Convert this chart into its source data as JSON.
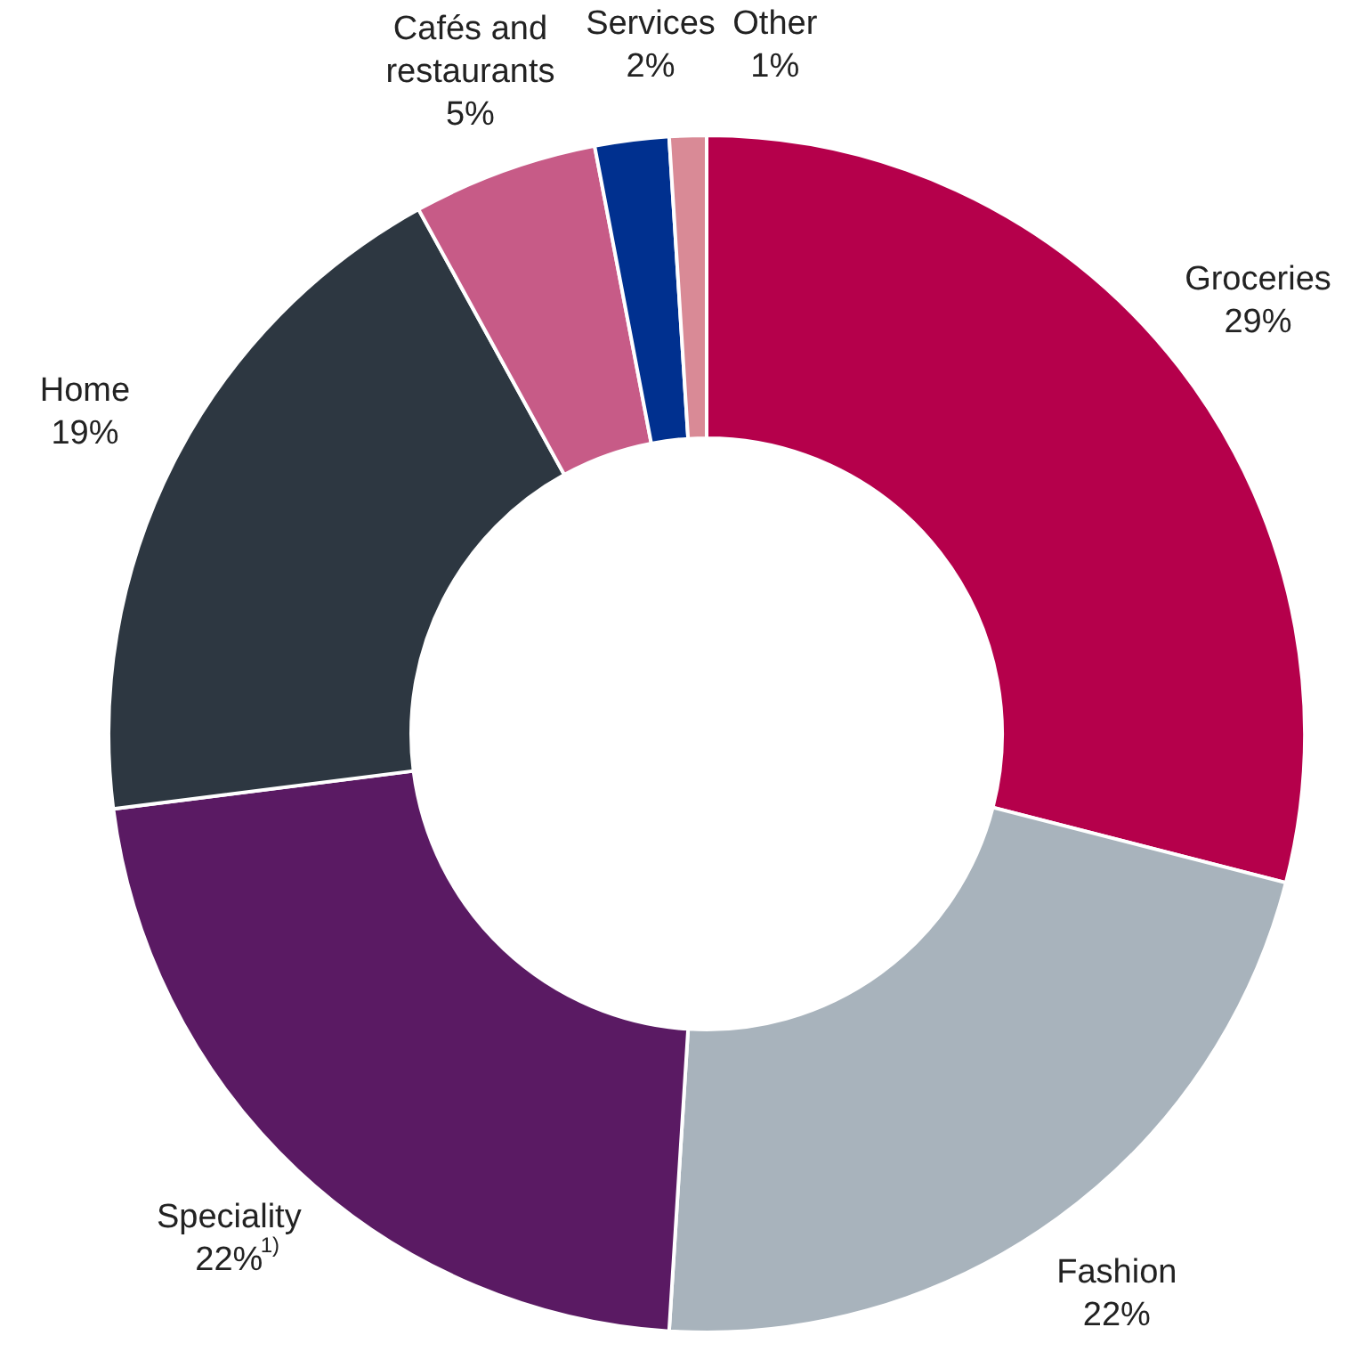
{
  "chart_data": {
    "type": "donut",
    "categories": [
      "Groceries",
      "Fashion",
      "Speciality",
      "Home",
      "Cafés and restaurants",
      "Services",
      "Other"
    ],
    "values": [
      29,
      22,
      22,
      19,
      5,
      2,
      1
    ],
    "colors": [
      "#b5004b",
      "#a8b3bc",
      "#5a1a63",
      "#2d3741",
      "#c75b87",
      "#00308f",
      "#d98a96"
    ],
    "value_labels": [
      "29%",
      "22%",
      "22%$^{1)}$",
      "19%",
      "5%",
      "2%",
      "1%"
    ]
  }
}
